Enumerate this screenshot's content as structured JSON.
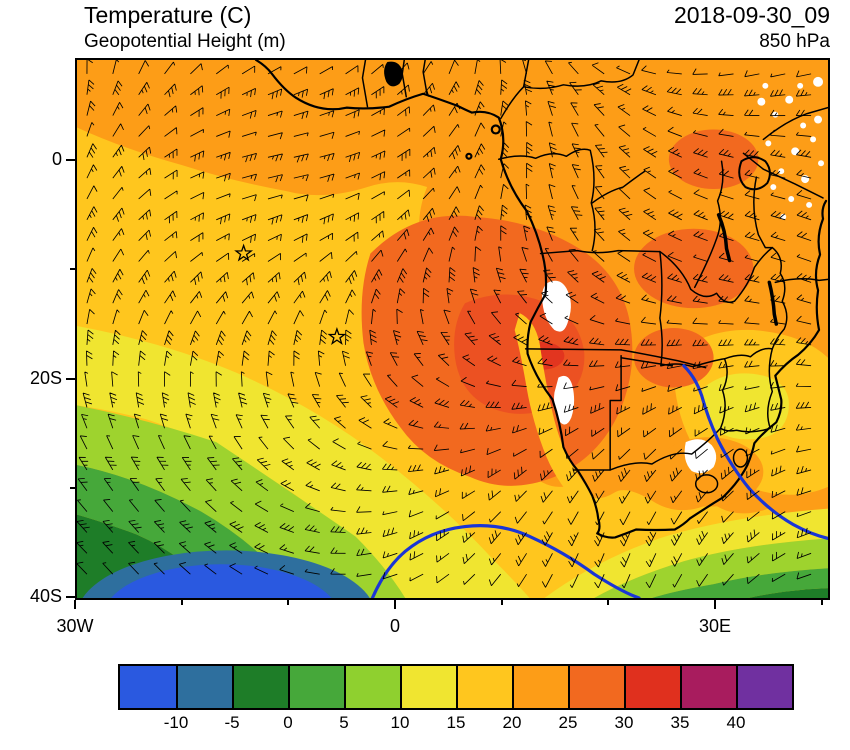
{
  "header": {
    "title": "Temperature (C)",
    "subtitle": "Geopotential Height (m)",
    "datetime": "2018-09-30_09",
    "level": "850 hPa"
  },
  "axes": {
    "y_ticks": [
      {
        "label": "0",
        "lat": 0
      },
      {
        "label": "20S",
        "lat": -20
      },
      {
        "label": "40S",
        "lat": -40
      }
    ],
    "x_ticks": [
      {
        "label": "30W",
        "lon": -30
      },
      {
        "label": "0",
        "lon": 0
      },
      {
        "label": "30E",
        "lon": 30
      }
    ]
  },
  "colorbar": {
    "tick_labels": [
      "-10",
      "-5",
      "0",
      "5",
      "10",
      "15",
      "20",
      "25",
      "30",
      "35",
      "40"
    ],
    "colors": [
      "#2a59e0",
      "#2e6f9e",
      "#1e7d28",
      "#46a83a",
      "#8fd02f",
      "#f0e530",
      "#ffc61e",
      "#fd9d17",
      "#f2691f",
      "#e0301e",
      "#a81c5e",
      "#7030a0"
    ]
  },
  "map_colors": {
    "base_gold": "#ffc61e",
    "orange": "#fd9d17",
    "deep_orange": "#f2691f",
    "hot_core": "#ec5122",
    "red_patch": "#e0301e",
    "yellow": "#f0e530",
    "yellow_green": "#9ed32e",
    "green": "#46a83a",
    "dark_green": "#1e7d28",
    "steel_blue": "#2e6f9e",
    "blue": "#2a59e0",
    "contour_blue": "#1a35d6",
    "white_patch": "#ffffff"
  },
  "chart_data": {
    "type": "heatmap",
    "title": "Temperature (C)",
    "overlay_field": "Geopotential Height (m)",
    "valid_time": "2018-09-30_09",
    "level": "850 hPa",
    "x_axis": {
      "tick_labels": [
        "30W",
        "0",
        "30E"
      ],
      "lon_range": [
        -30,
        41
      ]
    },
    "y_axis": {
      "tick_labels": [
        "0",
        "20S",
        "40S"
      ],
      "lat_range": [
        9,
        -41
      ]
    },
    "color_levels_c": [
      -10,
      -5,
      0,
      5,
      10,
      15,
      20,
      25,
      30,
      35,
      40
    ],
    "level_colors": [
      "#2a59e0",
      "#2e6f9e",
      "#1e7d28",
      "#46a83a",
      "#8fd02f",
      "#f0e530",
      "#ffc61e",
      "#fd9d17",
      "#f2691f",
      "#e0301e",
      "#a81c5e",
      "#7030a0"
    ],
    "wind_barbs": true,
    "height_contours": {
      "color": "#1a35d6",
      "labeled": false,
      "segments_visible": 2
    },
    "station_markers_lonlat": [
      [
        -14.3,
        -8.5
      ],
      [
        -5.5,
        -16.2
      ]
    ],
    "temperature_summary": [
      {
        "region": "Angola-Namibia interior hot core",
        "temp_c": "25-30"
      },
      {
        "region": "Equatorial Africa and Gulf of Guinea",
        "temp_c": "20-25"
      },
      {
        "region": "Subtropical South Atlantic and South Africa",
        "temp_c": "15-20"
      },
      {
        "region": "Mid-latitude bands toward southwest",
        "temp_c": "0-15"
      },
      {
        "region": "Far southwest cold pool",
        "temp_c": "below -5"
      }
    ]
  }
}
